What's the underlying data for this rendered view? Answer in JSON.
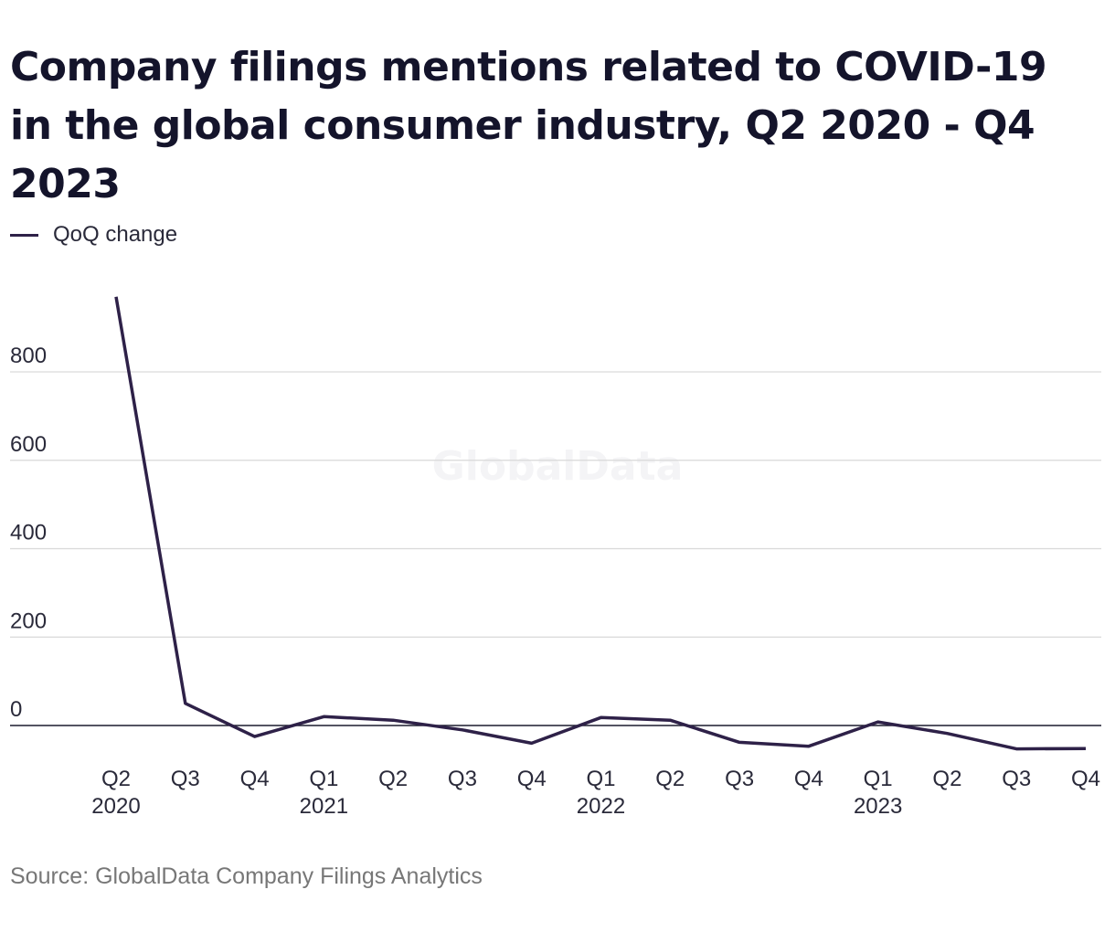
{
  "chart_data": {
    "type": "line",
    "title": "Company filings mentions related to COVID-19 in the global consumer industry, Q2 2020 - Q4 2023",
    "watermark": "GlobalData",
    "source": "Source: GlobalData Company Filings Analytics",
    "xlabel": "",
    "ylabel": "",
    "legend_position": "top-left",
    "grid": true,
    "ylim": [
      -60,
      980
    ],
    "y_ticks": [
      0,
      200,
      400,
      600,
      800
    ],
    "x_ticks": [
      {
        "q": "Q2",
        "year": "2020"
      },
      {
        "q": "Q3",
        "year": ""
      },
      {
        "q": "Q4",
        "year": ""
      },
      {
        "q": "Q1",
        "year": "2021"
      },
      {
        "q": "Q2",
        "year": ""
      },
      {
        "q": "Q3",
        "year": ""
      },
      {
        "q": "Q4",
        "year": ""
      },
      {
        "q": "Q1",
        "year": "2022"
      },
      {
        "q": "Q2",
        "year": ""
      },
      {
        "q": "Q3",
        "year": ""
      },
      {
        "q": "Q4",
        "year": ""
      },
      {
        "q": "Q1",
        "year": "2023"
      },
      {
        "q": "Q2",
        "year": ""
      },
      {
        "q": "Q3",
        "year": ""
      },
      {
        "q": "Q4",
        "year": ""
      }
    ],
    "series": [
      {
        "name": "QoQ change",
        "color": "#2e2148",
        "values": [
          970,
          50,
          -25,
          20,
          12,
          -10,
          -40,
          18,
          12,
          -38,
          -47,
          8,
          -18,
          -53,
          -52
        ]
      }
    ]
  }
}
